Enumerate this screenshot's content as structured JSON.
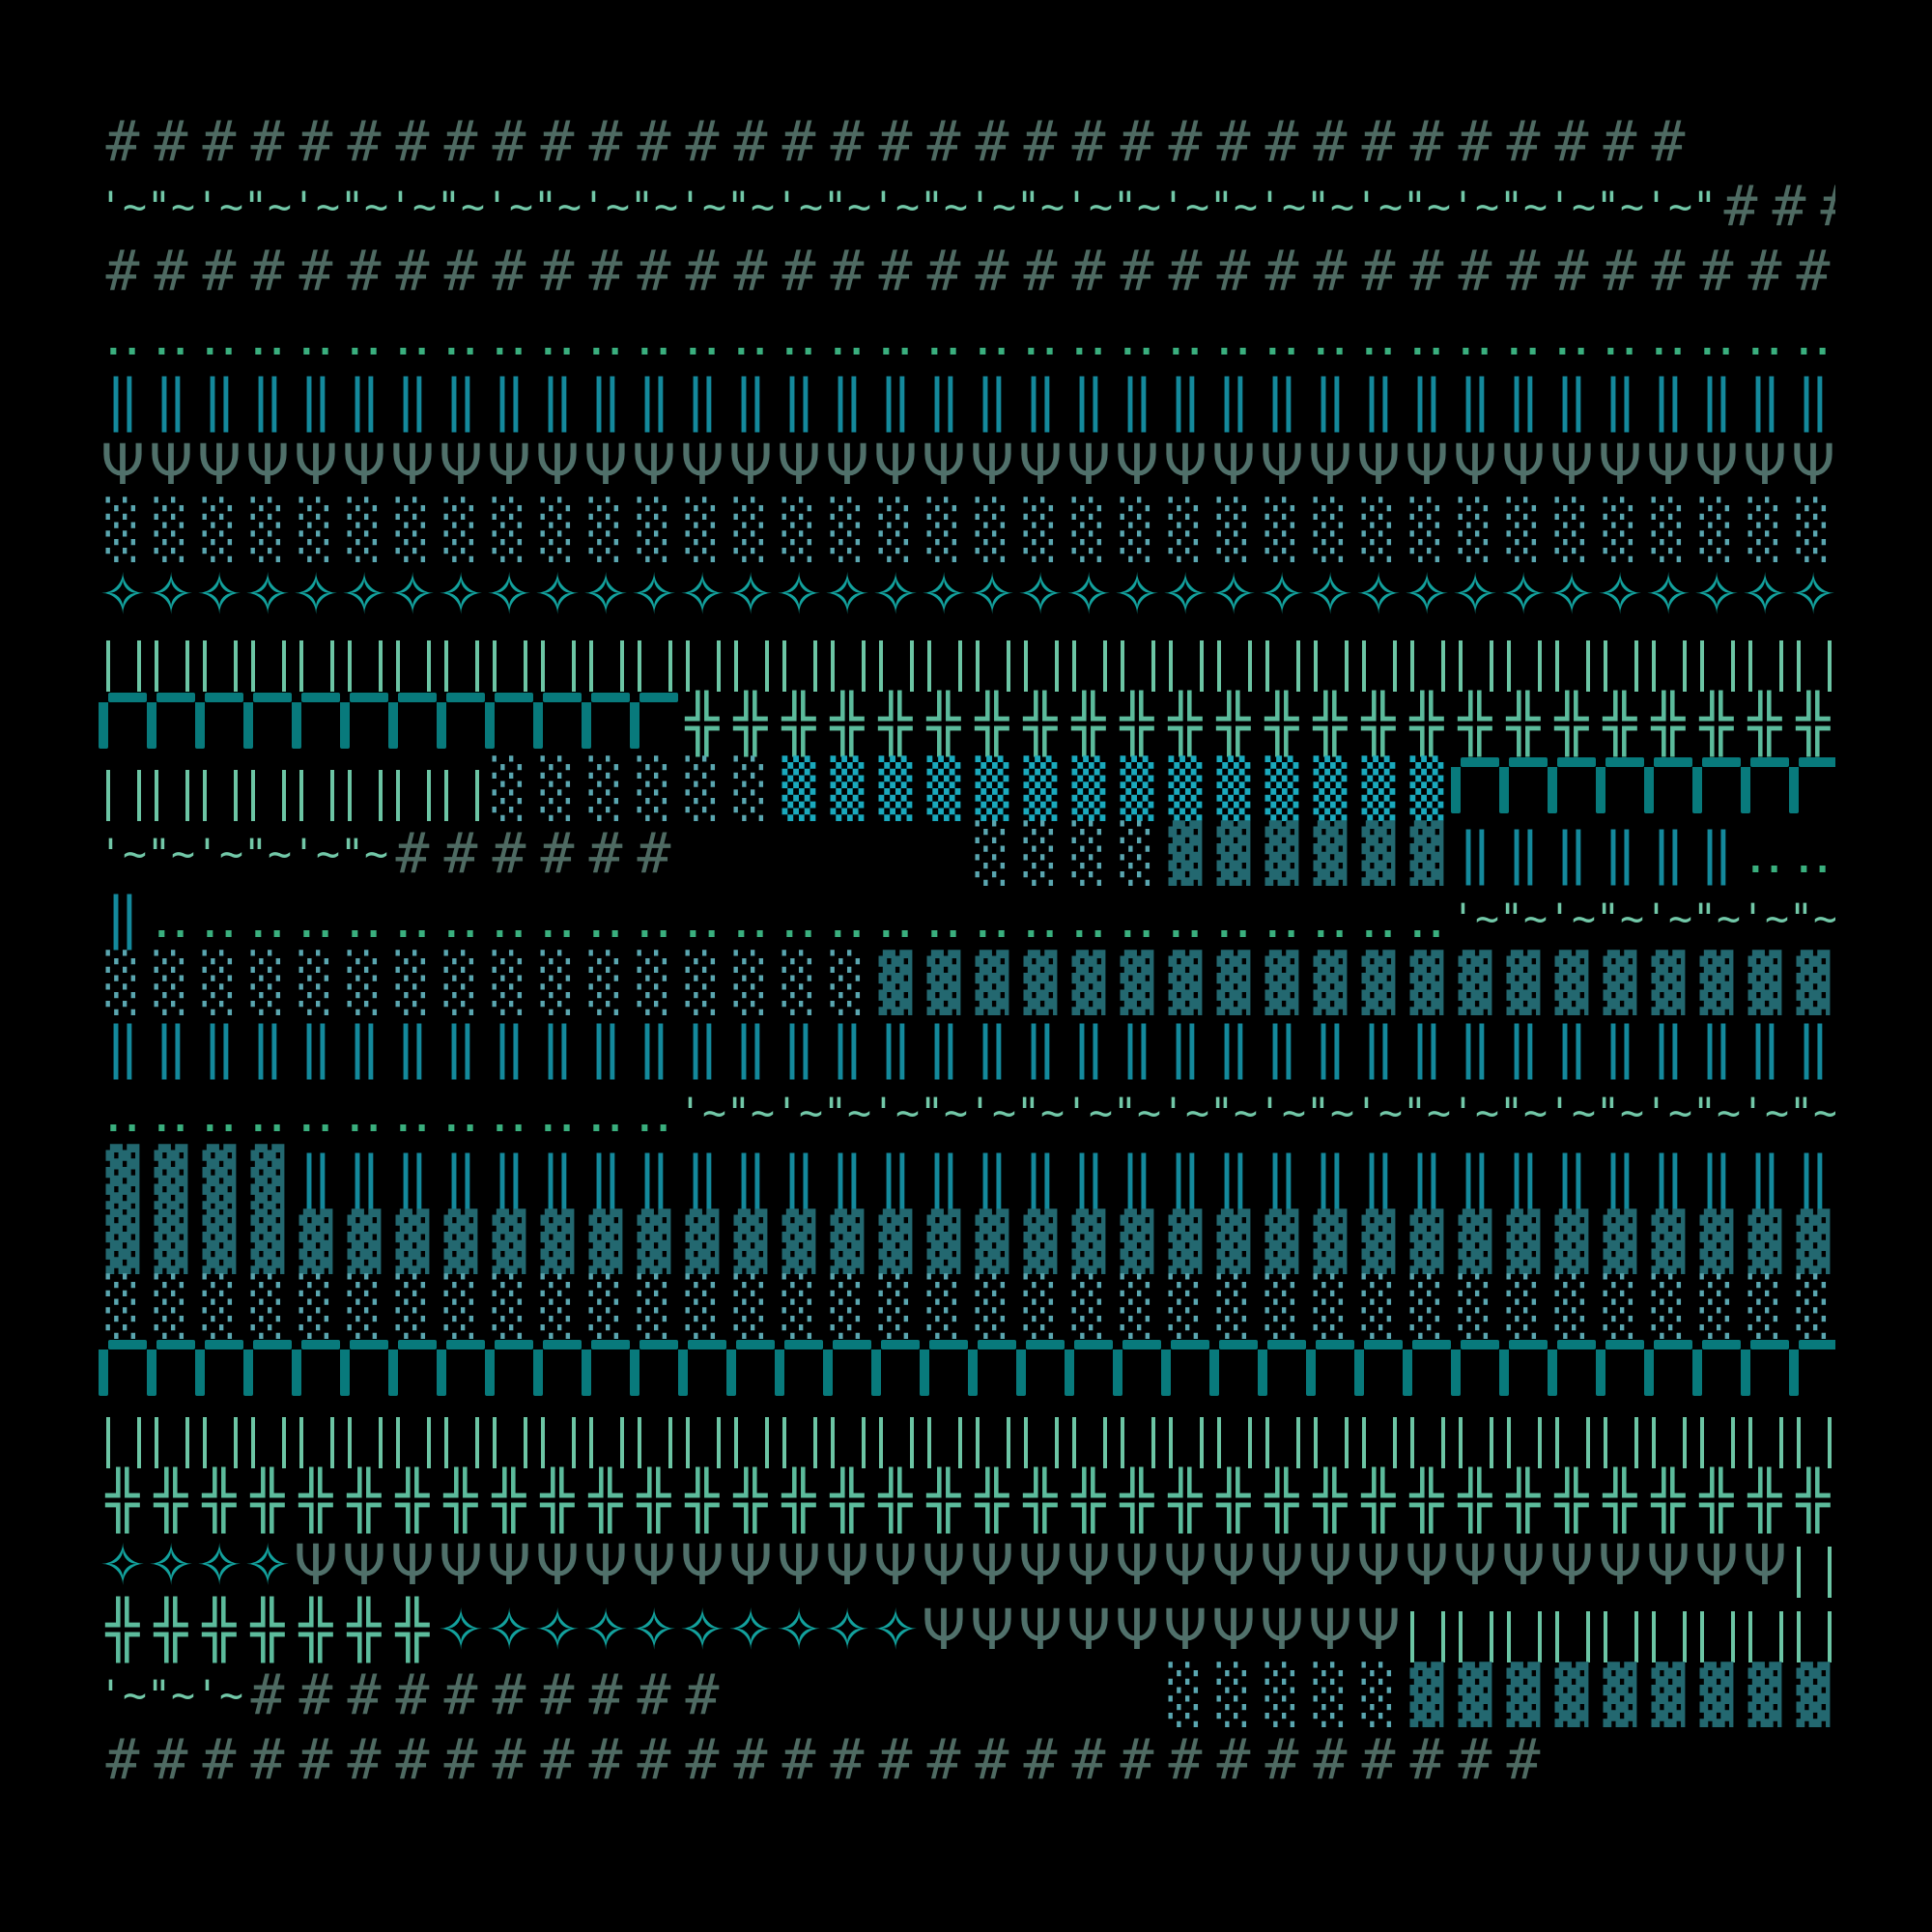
{
  "palette": {
    "hash": "#4e6a62",
    "wave": "#72c8a8",
    "dots": "#3aaf7e",
    "dbar": "#14899c",
    "psi": "#50706a",
    "light": "#5aa6b0",
    "star": "#13a19d",
    "bars": "#6cc5a4",
    "corner": "#087a7c",
    "cross": "#5cbb9c",
    "med": "#1aa9bd",
    "dark": "#236870",
    "background": "#000000"
  },
  "lines": [
    {
      "segments": [
        {
          "glyph": "#",
          "count": 33,
          "kind": "hash"
        }
      ]
    },
    {
      "segments": [
        {
          "glyph": "'~\"~",
          "count": 67,
          "kind": "wave"
        },
        {
          "glyph": "#",
          "count": 3,
          "kind": "hash"
        }
      ]
    },
    {
      "segments": [
        {
          "glyph": "#",
          "count": 37,
          "kind": "hash"
        }
      ]
    },
    {
      "segments": [
        {
          "glyph": "‥",
          "count": 37,
          "kind": "dots"
        }
      ]
    },
    {
      "segments": [
        {
          "glyph": "‖",
          "count": 36,
          "kind": "dbar"
        }
      ]
    },
    {
      "segments": [
        {
          "glyph": "Ψ",
          "count": 37,
          "kind": "psi"
        }
      ]
    },
    {
      "segments": [
        {
          "glyph": "░",
          "count": 37,
          "kind": "light"
        }
      ]
    },
    {
      "segments": [
        {
          "glyph": "✧",
          "count": 37,
          "kind": "star"
        }
      ]
    },
    {
      "segments": [
        {
          "glyph": "‖",
          "count": 37,
          "kind": "bars"
        }
      ]
    },
    {
      "segments": [
        {
          "glyph": "┏",
          "count": 12,
          "kind": "corner"
        },
        {
          "glyph": "╬",
          "count": 25,
          "kind": "cross"
        }
      ]
    },
    {
      "segments": [
        {
          "glyph": "‖",
          "count": 8,
          "kind": "bars"
        },
        {
          "glyph": "░",
          "count": 6,
          "kind": "light"
        },
        {
          "glyph": "▒",
          "count": 14,
          "kind": "med"
        },
        {
          "glyph": "┏",
          "count": 9,
          "kind": "corner"
        }
      ]
    },
    {
      "segments": [
        {
          "glyph": "'~\"~",
          "count": 12,
          "kind": "wave"
        },
        {
          "glyph": "#",
          "count": 6,
          "kind": "hash"
        },
        {
          "glyph": " ",
          "count": 6,
          "kind": "blank"
        },
        {
          "glyph": "░",
          "count": 4,
          "kind": "light"
        },
        {
          "glyph": "▓",
          "count": 6,
          "kind": "dark"
        },
        {
          "glyph": "‖",
          "count": 6,
          "kind": "dbar"
        },
        {
          "glyph": "‥",
          "count": 3,
          "kind": "dots"
        }
      ]
    },
    {
      "segments": [
        {
          "glyph": "‖",
          "count": 1,
          "kind": "dbar"
        },
        {
          "glyph": "‥",
          "count": 27,
          "kind": "dots"
        },
        {
          "glyph": "'~\"~",
          "count": 18,
          "kind": "wave"
        }
      ]
    },
    {
      "segments": [
        {
          "glyph": "░",
          "count": 16,
          "kind": "light"
        },
        {
          "glyph": "▓",
          "count": 21,
          "kind": "dark"
        }
      ]
    },
    {
      "segments": [
        {
          "glyph": "‖",
          "count": 36,
          "kind": "dbar"
        }
      ]
    },
    {
      "segments": [
        {
          "glyph": "‥",
          "count": 12,
          "kind": "dots"
        },
        {
          "glyph": "'~\"~",
          "count": 48,
          "kind": "wave"
        }
      ]
    },
    {
      "segments": [
        {
          "glyph": "▓",
          "count": 4,
          "kind": "dark"
        },
        {
          "glyph": "‖",
          "count": 32,
          "kind": "dbar"
        }
      ]
    },
    {
      "segments": [
        {
          "glyph": "▓",
          "count": 37,
          "kind": "dark"
        }
      ]
    },
    {
      "segments": [
        {
          "glyph": "░",
          "count": 37,
          "kind": "light"
        }
      ]
    },
    {
      "segments": [
        {
          "glyph": "┏",
          "count": 37,
          "kind": "corner"
        }
      ]
    },
    {
      "segments": [
        {
          "glyph": "‖",
          "count": 37,
          "kind": "bars"
        }
      ]
    },
    {
      "segments": [
        {
          "glyph": "╬",
          "count": 37,
          "kind": "cross"
        }
      ]
    },
    {
      "segments": [
        {
          "glyph": "✧",
          "count": 4,
          "kind": "star"
        },
        {
          "glyph": "Ψ",
          "count": 31,
          "kind": "psi"
        },
        {
          "glyph": "‖",
          "count": 2,
          "kind": "bars"
        }
      ]
    },
    {
      "segments": [
        {
          "glyph": "╬",
          "count": 7,
          "kind": "cross"
        },
        {
          "glyph": "✧",
          "count": 10,
          "kind": "star"
        },
        {
          "glyph": "Ψ",
          "count": 10,
          "kind": "psi"
        },
        {
          "glyph": "‖",
          "count": 10,
          "kind": "bars"
        }
      ]
    },
    {
      "segments": [
        {
          "glyph": "'~\"~",
          "count": 6,
          "kind": "wave"
        },
        {
          "glyph": "#",
          "count": 10,
          "kind": "hash"
        },
        {
          "glyph": " ",
          "count": 9,
          "kind": "blank"
        },
        {
          "glyph": "░",
          "count": 5,
          "kind": "light"
        },
        {
          "glyph": "▓",
          "count": 10,
          "kind": "dark"
        }
      ]
    },
    {
      "segments": [
        {
          "glyph": "#",
          "count": 30,
          "kind": "hash"
        }
      ]
    }
  ]
}
